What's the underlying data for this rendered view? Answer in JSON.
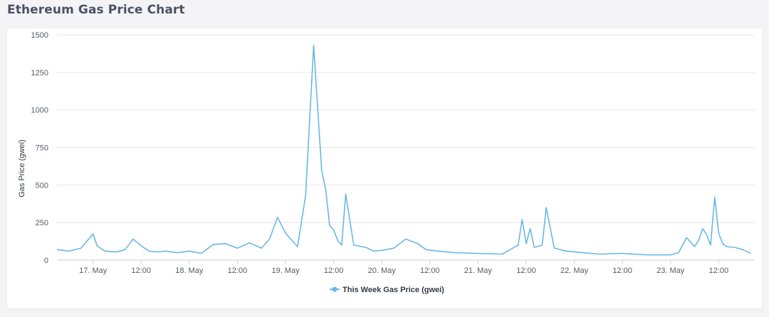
{
  "header": {
    "title": "Ethereum Gas Price Chart"
  },
  "colors": {
    "series": "#6ab8e3",
    "grid": "#e6e6e6",
    "background": "#f4f4f6"
  },
  "chart_data": {
    "type": "line",
    "title": "",
    "xlabel": "",
    "ylabel": "Gas Price (gwei)",
    "ylim": [
      0,
      1500
    ],
    "yticks": [
      0,
      250,
      500,
      750,
      1000,
      1250,
      1500
    ],
    "xlim": [
      "2020-05-16 15:00",
      "2020-05-23 21:00"
    ],
    "xtick_labels": [
      "17. May",
      "12:00",
      "18. May",
      "12:00",
      "19. May",
      "12:00",
      "20. May",
      "12:00",
      "21. May",
      "12:00",
      "22. May",
      "12:00",
      "23. May",
      "12:00"
    ],
    "grid": true,
    "legend_position": "bottom-center",
    "series": [
      {
        "name": "This Week Gas Price (gwei)",
        "x": [
          "2020-05-16 15:00",
          "2020-05-16 18:00",
          "2020-05-16 21:00",
          "2020-05-17 00:00",
          "2020-05-17 01:00",
          "2020-05-17 03:00",
          "2020-05-17 06:00",
          "2020-05-17 08:00",
          "2020-05-17 10:00",
          "2020-05-17 12:00",
          "2020-05-17 14:00",
          "2020-05-17 16:00",
          "2020-05-17 18:00",
          "2020-05-17 21:00",
          "2020-05-18 00:00",
          "2020-05-18 03:00",
          "2020-05-18 06:00",
          "2020-05-18 09:00",
          "2020-05-18 12:00",
          "2020-05-18 15:00",
          "2020-05-18 18:00",
          "2020-05-18 20:00",
          "2020-05-18 22:00",
          "2020-05-19 00:00",
          "2020-05-19 03:00",
          "2020-05-19 05:00",
          "2020-05-19 07:00",
          "2020-05-19 09:00",
          "2020-05-19 10:00",
          "2020-05-19 11:00",
          "2020-05-19 12:00",
          "2020-05-19 13:00",
          "2020-05-19 14:00",
          "2020-05-19 15:00",
          "2020-05-19 17:00",
          "2020-05-19 20:00",
          "2020-05-19 22:00",
          "2020-05-20 00:00",
          "2020-05-20 03:00",
          "2020-05-20 06:00",
          "2020-05-20 09:00",
          "2020-05-20 11:00",
          "2020-05-20 14:00",
          "2020-05-20 18:00",
          "2020-05-21 00:00",
          "2020-05-21 06:00",
          "2020-05-21 10:00",
          "2020-05-21 11:00",
          "2020-05-21 12:00",
          "2020-05-21 13:00",
          "2020-05-21 14:00",
          "2020-05-21 16:00",
          "2020-05-21 17:00",
          "2020-05-21 19:00",
          "2020-05-21 22:00",
          "2020-05-22 02:00",
          "2020-05-22 06:00",
          "2020-05-22 12:00",
          "2020-05-22 18:00",
          "2020-05-23 00:00",
          "2020-05-23 02:00",
          "2020-05-23 04:00",
          "2020-05-23 06:00",
          "2020-05-23 07:00",
          "2020-05-23 08:00",
          "2020-05-23 09:00",
          "2020-05-23 10:00",
          "2020-05-23 11:00",
          "2020-05-23 12:00",
          "2020-05-23 13:00",
          "2020-05-23 14:00",
          "2020-05-23 16:00",
          "2020-05-23 18:00",
          "2020-05-23 20:00"
        ],
        "values": [
          70,
          60,
          80,
          175,
          95,
          60,
          55,
          70,
          140,
          95,
          60,
          55,
          60,
          50,
          60,
          45,
          105,
          110,
          80,
          115,
          80,
          140,
          285,
          180,
          90,
          430,
          1430,
          600,
          470,
          230,
          200,
          130,
          100,
          440,
          100,
          85,
          60,
          65,
          80,
          140,
          110,
          70,
          60,
          50,
          45,
          40,
          100,
          270,
          110,
          210,
          85,
          100,
          350,
          80,
          60,
          50,
          40,
          45,
          35,
          35,
          50,
          150,
          90,
          130,
          210,
          170,
          100,
          420,
          180,
          110,
          90,
          85,
          70,
          45
        ]
      }
    ]
  }
}
